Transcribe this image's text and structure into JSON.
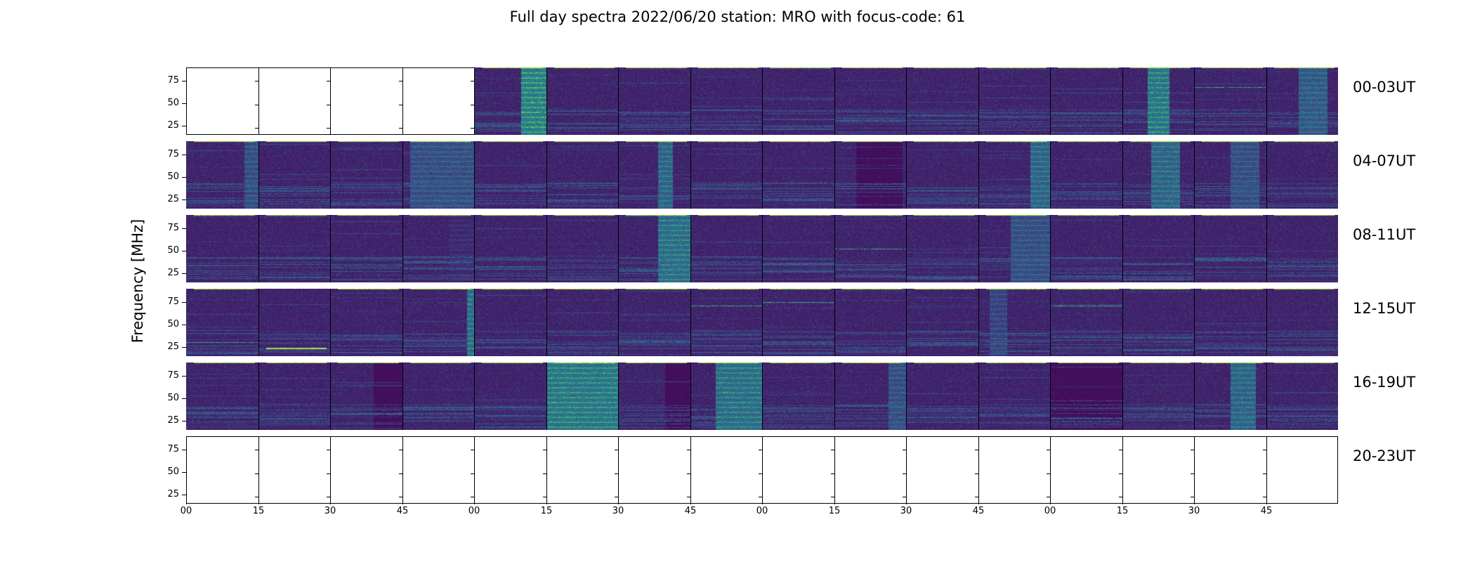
{
  "chart_data": {
    "type": "heatmap",
    "title": "Full day spectra 2022/06/20 station: MRO with focus-code: 61",
    "xlabel": "",
    "ylabel": "Frequency [MHz]",
    "ylim": [
      15,
      90
    ],
    "yticks": [
      "25",
      "50",
      "75"
    ],
    "xticks": [
      "00",
      "15",
      "30",
      "45",
      "00",
      "15",
      "30",
      "45",
      "00",
      "15",
      "30",
      "45",
      "00",
      "15",
      "30",
      "45"
    ],
    "colormap": [
      "#440154",
      "#3b528b",
      "#21918c",
      "#5ec962",
      "#fde725"
    ],
    "grid": false,
    "rows": [
      {
        "label": "00-03UT",
        "panels": [
          {
            "empty": true
          },
          {
            "empty": true
          },
          {
            "empty": true
          },
          {
            "empty": true
          },
          {
            "empty": false,
            "band": [
              0.65,
              1.0
            ],
            "level": 0.55
          },
          {
            "empty": false
          },
          {
            "empty": false
          },
          {
            "empty": false
          },
          {
            "empty": false
          },
          {
            "empty": false
          },
          {
            "empty": false
          },
          {
            "empty": false
          },
          {
            "empty": false
          },
          {
            "empty": false,
            "band": [
              0.35,
              0.65
            ],
            "level": 0.5
          },
          {
            "empty": false,
            "line": 0.7
          },
          {
            "empty": false,
            "band": [
              0.45,
              0.85
            ],
            "level": 0.35
          }
        ]
      },
      {
        "label": "04-07UT",
        "panels": [
          {
            "empty": false,
            "band": [
              0.8,
              1.0
            ],
            "level": 0.3
          },
          {
            "empty": false
          },
          {
            "empty": false
          },
          {
            "empty": false,
            "band": [
              0.1,
              1.0
            ],
            "level": 0.3
          },
          {
            "empty": false
          },
          {
            "empty": false
          },
          {
            "empty": false,
            "band": [
              0.55,
              0.75
            ],
            "level": 0.4
          },
          {
            "empty": false
          },
          {
            "empty": false
          },
          {
            "empty": false,
            "band": [
              0.3,
              0.95
            ],
            "level": 0.0
          },
          {
            "empty": false
          },
          {
            "empty": false,
            "band": [
              0.72,
              1.0
            ],
            "level": 0.4
          },
          {
            "empty": false
          },
          {
            "empty": false,
            "band": [
              0.4,
              0.8
            ],
            "level": 0.4
          },
          {
            "empty": false,
            "band": [
              0.5,
              0.9
            ],
            "level": 0.3
          },
          {
            "empty": false
          }
        ]
      },
      {
        "label": "08-11UT",
        "panels": [
          {
            "empty": false
          },
          {
            "empty": false
          },
          {
            "empty": false
          },
          {
            "empty": false,
            "band": [
              0.65,
              1.0
            ],
            "level": 0.15
          },
          {
            "empty": false
          },
          {
            "empty": false
          },
          {
            "empty": false,
            "band": [
              0.55,
              1.0
            ],
            "level": 0.45
          },
          {
            "empty": false
          },
          {
            "empty": false
          },
          {
            "empty": false,
            "line": 0.5
          },
          {
            "empty": false
          },
          {
            "empty": false,
            "band": [
              0.45,
              1.0
            ],
            "level": 0.3
          },
          {
            "empty": false
          },
          {
            "empty": false
          },
          {
            "empty": false
          },
          {
            "empty": false
          }
        ]
      },
      {
        "label": "12-15UT",
        "panels": [
          {
            "empty": false,
            "line": 0.2
          },
          {
            "empty": false,
            "hot": 0.12
          },
          {
            "empty": false
          },
          {
            "empty": false,
            "band": [
              0.9,
              1.0
            ],
            "level": 0.45
          },
          {
            "empty": false
          },
          {
            "empty": false
          },
          {
            "empty": false
          },
          {
            "empty": false,
            "line": 0.75
          },
          {
            "empty": false,
            "line": 0.8
          },
          {
            "empty": false
          },
          {
            "empty": false
          },
          {
            "empty": false,
            "band": [
              0.15,
              0.4
            ],
            "level": 0.25
          },
          {
            "empty": false,
            "line": 0.75
          },
          {
            "empty": false
          },
          {
            "empty": false
          },
          {
            "empty": false
          }
        ]
      },
      {
        "label": "16-19UT",
        "panels": [
          {
            "empty": false
          },
          {
            "empty": false
          },
          {
            "empty": false,
            "band": [
              0.6,
              1.0
            ],
            "level": 0.0
          },
          {
            "empty": false
          },
          {
            "empty": false
          },
          {
            "empty": false,
            "band": [
              0.0,
              1.0
            ],
            "level": 0.5
          },
          {
            "empty": false,
            "band": [
              0.65,
              1.0
            ],
            "level": 0.0
          },
          {
            "empty": false,
            "band": [
              0.35,
              1.0
            ],
            "level": 0.45
          },
          {
            "empty": false
          },
          {
            "empty": false,
            "band": [
              0.75,
              1.0
            ],
            "level": 0.3
          },
          {
            "empty": false
          },
          {
            "empty": false
          },
          {
            "empty": false,
            "band": [
              0.0,
              1.0
            ],
            "level": 0.0
          },
          {
            "empty": false
          },
          {
            "empty": false,
            "band": [
              0.5,
              0.85
            ],
            "level": 0.4
          },
          {
            "empty": false
          }
        ]
      },
      {
        "label": "20-23UT",
        "panels": [
          {
            "empty": true
          },
          {
            "empty": true
          },
          {
            "empty": true
          },
          {
            "empty": true
          },
          {
            "empty": true
          },
          {
            "empty": true
          },
          {
            "empty": true
          },
          {
            "empty": true
          },
          {
            "empty": true
          },
          {
            "empty": true
          },
          {
            "empty": true
          },
          {
            "empty": true
          },
          {
            "empty": true
          },
          {
            "empty": true
          },
          {
            "empty": true
          },
          {
            "empty": true
          }
        ]
      }
    ]
  }
}
